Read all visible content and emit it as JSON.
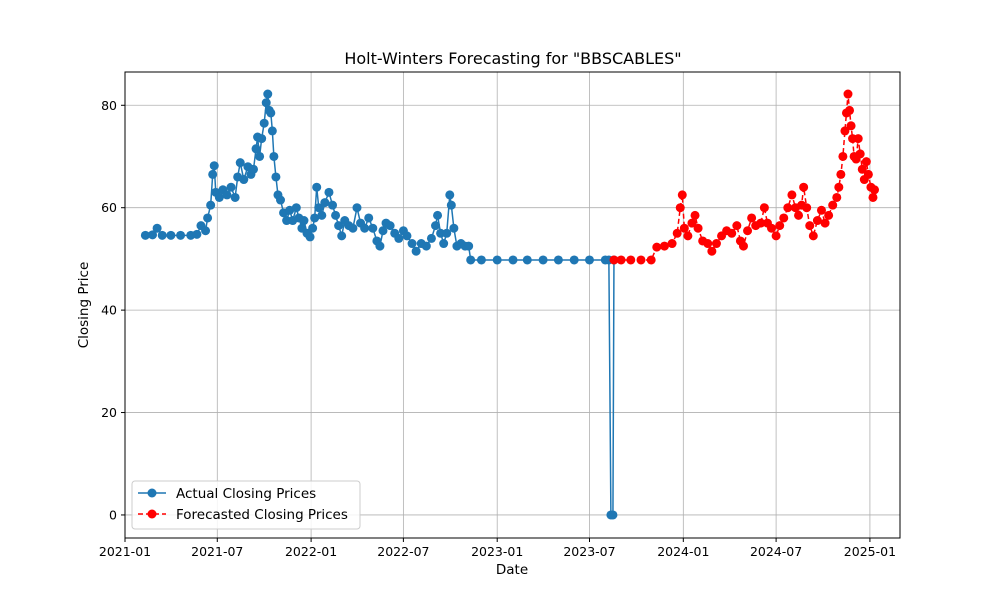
{
  "chart_data": {
    "type": "line",
    "title": "Holt-Winters Forecasting for \"BBSCABLES\"",
    "xlabel": "Date",
    "ylabel": "Closing Price",
    "xlim": [
      "2021-01-01",
      "2025-03-01"
    ],
    "ylim": [
      -4.5,
      86.5
    ],
    "x_ticks": [
      "2021-01",
      "2021-07",
      "2022-01",
      "2022-07",
      "2023-01",
      "2023-07",
      "2024-01",
      "2024-07",
      "2025-01"
    ],
    "y_ticks": [
      0,
      20,
      40,
      60,
      80
    ],
    "grid": true,
    "legend_position": "lower-left",
    "series": [
      {
        "name": "Actual Closing Prices",
        "color": "#1f77b4",
        "line_style": "solid",
        "marker": "circle",
        "points": [
          [
            "2021-02-10",
            54.6
          ],
          [
            "2021-02-24",
            54.7
          ],
          [
            "2021-03-05",
            56.0
          ],
          [
            "2021-03-15",
            54.6
          ],
          [
            "2021-04-01",
            54.6
          ],
          [
            "2021-04-20",
            54.6
          ],
          [
            "2021-05-10",
            54.6
          ],
          [
            "2021-05-22",
            54.8
          ],
          [
            "2021-05-30",
            56.5
          ],
          [
            "2021-06-08",
            55.5
          ],
          [
            "2021-06-12",
            58.0
          ],
          [
            "2021-06-18",
            60.5
          ],
          [
            "2021-06-22",
            66.5
          ],
          [
            "2021-06-25",
            68.2
          ],
          [
            "2021-06-28",
            63.0
          ],
          [
            "2021-07-05",
            62.0
          ],
          [
            "2021-07-12",
            63.5
          ],
          [
            "2021-07-20",
            62.5
          ],
          [
            "2021-07-28",
            64.0
          ],
          [
            "2021-08-05",
            62.0
          ],
          [
            "2021-08-10",
            66.0
          ],
          [
            "2021-08-15",
            68.8
          ],
          [
            "2021-08-22",
            65.5
          ],
          [
            "2021-08-30",
            68.0
          ],
          [
            "2021-09-05",
            66.5
          ],
          [
            "2021-09-10",
            67.5
          ],
          [
            "2021-09-15",
            71.5
          ],
          [
            "2021-09-18",
            73.8
          ],
          [
            "2021-09-22",
            70.0
          ],
          [
            "2021-09-26",
            73.5
          ],
          [
            "2021-10-01",
            76.5
          ],
          [
            "2021-10-05",
            80.5
          ],
          [
            "2021-10-08",
            82.2
          ],
          [
            "2021-10-11",
            79.0
          ],
          [
            "2021-10-14",
            78.5
          ],
          [
            "2021-10-17",
            75.0
          ],
          [
            "2021-10-20",
            70.0
          ],
          [
            "2021-10-24",
            66.0
          ],
          [
            "2021-10-28",
            62.5
          ],
          [
            "2021-11-02",
            61.5
          ],
          [
            "2021-11-08",
            59.0
          ],
          [
            "2021-11-14",
            57.5
          ],
          [
            "2021-11-20",
            59.5
          ],
          [
            "2021-11-26",
            57.5
          ],
          [
            "2021-12-03",
            60.0
          ],
          [
            "2021-12-08",
            58.0
          ],
          [
            "2021-12-14",
            56.0
          ],
          [
            "2021-12-18",
            57.5
          ],
          [
            "2021-12-24",
            55.0
          ],
          [
            "2021-12-30",
            54.3
          ],
          [
            "2022-01-04",
            56.0
          ],
          [
            "2022-01-08",
            58.0
          ],
          [
            "2022-01-12",
            64.0
          ],
          [
            "2022-01-16",
            60.0
          ],
          [
            "2022-01-22",
            58.5
          ],
          [
            "2022-01-28",
            61.0
          ],
          [
            "2022-02-05",
            63.0
          ],
          [
            "2022-02-12",
            60.5
          ],
          [
            "2022-02-18",
            58.5
          ],
          [
            "2022-02-24",
            56.5
          ],
          [
            "2022-03-02",
            54.5
          ],
          [
            "2022-03-08",
            57.5
          ],
          [
            "2022-03-16",
            56.5
          ],
          [
            "2022-03-24",
            56.0
          ],
          [
            "2022-04-01",
            60.0
          ],
          [
            "2022-04-08",
            57.0
          ],
          [
            "2022-04-16",
            56.0
          ],
          [
            "2022-04-24",
            58.0
          ],
          [
            "2022-05-02",
            56.0
          ],
          [
            "2022-05-10",
            53.5
          ],
          [
            "2022-05-16",
            52.5
          ],
          [
            "2022-05-22",
            55.5
          ],
          [
            "2022-05-28",
            57.0
          ],
          [
            "2022-06-05",
            56.5
          ],
          [
            "2022-06-14",
            55.0
          ],
          [
            "2022-06-22",
            54.0
          ],
          [
            "2022-07-01",
            55.5
          ],
          [
            "2022-07-08",
            54.5
          ],
          [
            "2022-07-18",
            53.0
          ],
          [
            "2022-07-26",
            51.5
          ],
          [
            "2022-08-05",
            53.0
          ],
          [
            "2022-08-15",
            52.5
          ],
          [
            "2022-08-25",
            54.0
          ],
          [
            "2022-09-02",
            56.5
          ],
          [
            "2022-09-06",
            58.5
          ],
          [
            "2022-09-12",
            55.0
          ],
          [
            "2022-09-18",
            53.0
          ],
          [
            "2022-09-24",
            55.0
          ],
          [
            "2022-09-30",
            62.5
          ],
          [
            "2022-10-03",
            60.5
          ],
          [
            "2022-10-08",
            56.0
          ],
          [
            "2022-10-14",
            52.5
          ],
          [
            "2022-10-22",
            53.0
          ],
          [
            "2022-10-30",
            52.5
          ],
          [
            "2022-11-06",
            52.5
          ],
          [
            "2022-11-10",
            49.8
          ],
          [
            "2022-12-01",
            49.8
          ],
          [
            "2023-01-01",
            49.8
          ],
          [
            "2023-02-01",
            49.8
          ],
          [
            "2023-03-01",
            49.8
          ],
          [
            "2023-04-01",
            49.8
          ],
          [
            "2023-05-01",
            49.8
          ],
          [
            "2023-06-01",
            49.8
          ],
          [
            "2023-07-01",
            49.8
          ],
          [
            "2023-08-01",
            49.8
          ],
          [
            "2023-08-08",
            49.8
          ],
          [
            "2023-08-12",
            0.0
          ],
          [
            "2023-08-16",
            0.0
          ],
          [
            "2023-08-18",
            49.8
          ]
        ]
      },
      {
        "name": "Forecasted Closing Prices",
        "color": "#ff0000",
        "line_style": "dashed",
        "marker": "circle",
        "points": [
          [
            "2023-08-18",
            49.8
          ],
          [
            "2023-09-01",
            49.8
          ],
          [
            "2023-09-20",
            49.8
          ],
          [
            "2023-10-10",
            49.8
          ],
          [
            "2023-10-30",
            49.8
          ],
          [
            "2023-11-10",
            52.3
          ],
          [
            "2023-11-25",
            52.5
          ],
          [
            "2023-12-10",
            53.0
          ],
          [
            "2023-12-20",
            55.0
          ],
          [
            "2023-12-26",
            60.0
          ],
          [
            "2023-12-30",
            62.5
          ],
          [
            "2024-01-03",
            56.0
          ],
          [
            "2024-01-10",
            54.5
          ],
          [
            "2024-01-18",
            57.0
          ],
          [
            "2024-01-24",
            58.5
          ],
          [
            "2024-01-30",
            56.0
          ],
          [
            "2024-02-08",
            53.5
          ],
          [
            "2024-02-18",
            53.0
          ],
          [
            "2024-02-26",
            51.5
          ],
          [
            "2024-03-06",
            53.0
          ],
          [
            "2024-03-16",
            54.5
          ],
          [
            "2024-03-26",
            55.5
          ],
          [
            "2024-04-05",
            55.0
          ],
          [
            "2024-04-15",
            56.5
          ],
          [
            "2024-04-22",
            53.5
          ],
          [
            "2024-04-28",
            52.5
          ],
          [
            "2024-05-06",
            55.5
          ],
          [
            "2024-05-14",
            58.0
          ],
          [
            "2024-05-22",
            56.5
          ],
          [
            "2024-06-01",
            57.0
          ],
          [
            "2024-06-08",
            60.0
          ],
          [
            "2024-06-14",
            57.0
          ],
          [
            "2024-06-22",
            56.0
          ],
          [
            "2024-07-01",
            54.5
          ],
          [
            "2024-07-08",
            56.5
          ],
          [
            "2024-07-16",
            58.0
          ],
          [
            "2024-07-24",
            60.0
          ],
          [
            "2024-08-01",
            62.5
          ],
          [
            "2024-08-08",
            60.0
          ],
          [
            "2024-08-14",
            58.5
          ],
          [
            "2024-08-20",
            60.5
          ],
          [
            "2024-08-24",
            64.0
          ],
          [
            "2024-08-30",
            60.0
          ],
          [
            "2024-09-05",
            56.5
          ],
          [
            "2024-09-12",
            54.5
          ],
          [
            "2024-09-20",
            57.5
          ],
          [
            "2024-09-28",
            59.5
          ],
          [
            "2024-10-05",
            57.0
          ],
          [
            "2024-10-12",
            58.5
          ],
          [
            "2024-10-20",
            60.5
          ],
          [
            "2024-10-28",
            62.0
          ],
          [
            "2024-11-01",
            64.0
          ],
          [
            "2024-11-05",
            66.5
          ],
          [
            "2024-11-09",
            70.0
          ],
          [
            "2024-11-13",
            75.0
          ],
          [
            "2024-11-16",
            78.5
          ],
          [
            "2024-11-19",
            82.2
          ],
          [
            "2024-11-22",
            79.0
          ],
          [
            "2024-11-25",
            76.0
          ],
          [
            "2024-11-28",
            73.5
          ],
          [
            "2024-12-01",
            70.0
          ],
          [
            "2024-12-05",
            69.5
          ],
          [
            "2024-12-09",
            73.5
          ],
          [
            "2024-12-13",
            70.5
          ],
          [
            "2024-12-17",
            67.5
          ],
          [
            "2024-12-21",
            65.5
          ],
          [
            "2024-12-25",
            69.0
          ],
          [
            "2024-12-29",
            66.5
          ],
          [
            "2025-01-03",
            64.0
          ],
          [
            "2025-01-07",
            62.0
          ],
          [
            "2025-01-10",
            63.5
          ]
        ]
      }
    ]
  }
}
